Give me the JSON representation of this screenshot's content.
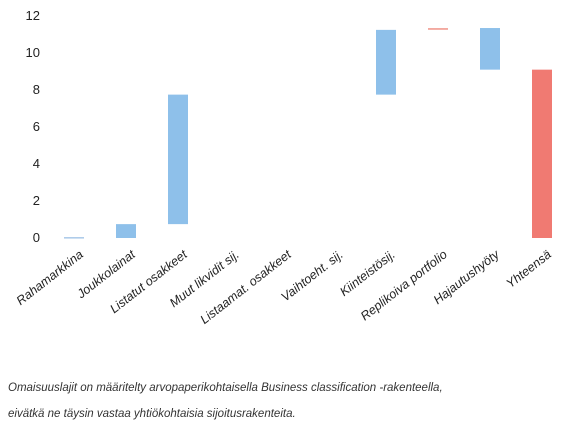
{
  "chart_data": {
    "type": "bar",
    "subtype": "waterfall",
    "categories": [
      "Rahamarkkina",
      "Joukkolainat",
      "Listatut osakkeet",
      "Muut likvidit sij.",
      "Listaamat. osakkeet",
      "Vaihtoeht. sij.",
      "Kiinteistösij.",
      "Replikoiva portfolio",
      "Hajautushyöty",
      "Yhteensä"
    ],
    "ranges": [
      [
        0,
        0.05
      ],
      [
        0,
        0.75
      ],
      [
        0.75,
        7.75
      ],
      [
        7.75,
        7.75
      ],
      [
        7.75,
        7.75
      ],
      [
        7.75,
        7.75
      ],
      [
        7.75,
        11.25
      ],
      [
        11.25,
        11.35
      ],
      [
        9.1,
        11.35
      ],
      [
        0,
        9.1
      ]
    ],
    "colors": [
      "#a9c9e8",
      "#8ec0ea",
      "#8ec0ea",
      "#8ec0ea",
      "#8ec0ea",
      "#8ec0ea",
      "#8ec0ea",
      "#f3a79e",
      "#8ec0ea",
      "#f07a72"
    ],
    "ylim": [
      0,
      12
    ],
    "yticks": [
      0,
      2,
      4,
      6,
      8,
      10,
      12
    ],
    "xlabel": "",
    "ylabel": "",
    "title": "",
    "grid": false
  },
  "footnote": {
    "line1": "Omaisuuslajit on määritelty arvopaperikohtaisella Business classification -rakenteella,",
    "line2": "eivätkä ne täysin vastaa yhtiökohtaisia sijoitusrakenteita."
  }
}
